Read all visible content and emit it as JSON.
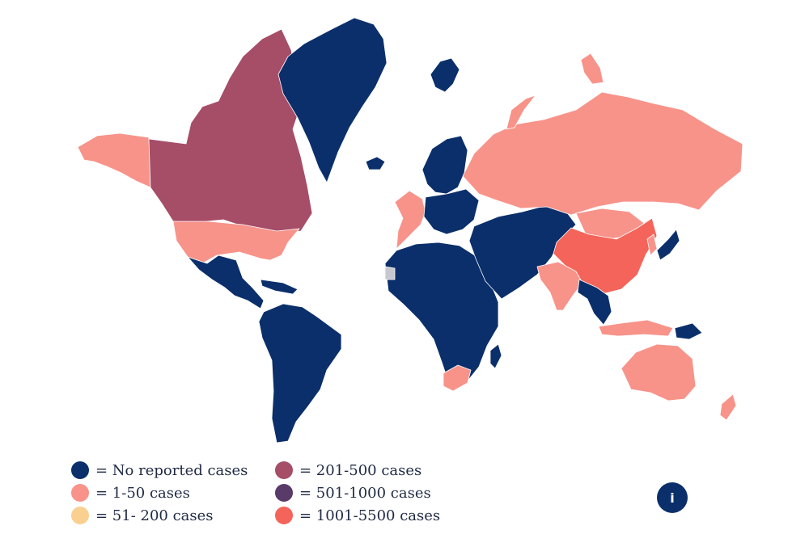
{
  "colors": {
    "none": "#0b2f6b",
    "c1_50": "#f8938a",
    "c51_200": "#f9d08f",
    "c201_500": "#a64d68",
    "c501_1000": "#5a3a68",
    "c1001_5500": "#f4645a",
    "nodata": "#c7c7cf"
  },
  "legend": {
    "items": [
      {
        "label": "= No reported cases",
        "color": "#0b2f6b"
      },
      {
        "label": "= 1-50 cases",
        "color": "#f8938a"
      },
      {
        "label": "= 51- 200 cases",
        "color": "#f9d08f"
      },
      {
        "label": "= 201-500 cases",
        "color": "#a64d68"
      },
      {
        "label": "= 501-1000 cases",
        "color": "#5a3a68"
      },
      {
        "label": "= 1001-5500 cases",
        "color": "#f4645a"
      }
    ]
  },
  "info_button": {
    "label": "i",
    "icon": "info-icon"
  }
}
